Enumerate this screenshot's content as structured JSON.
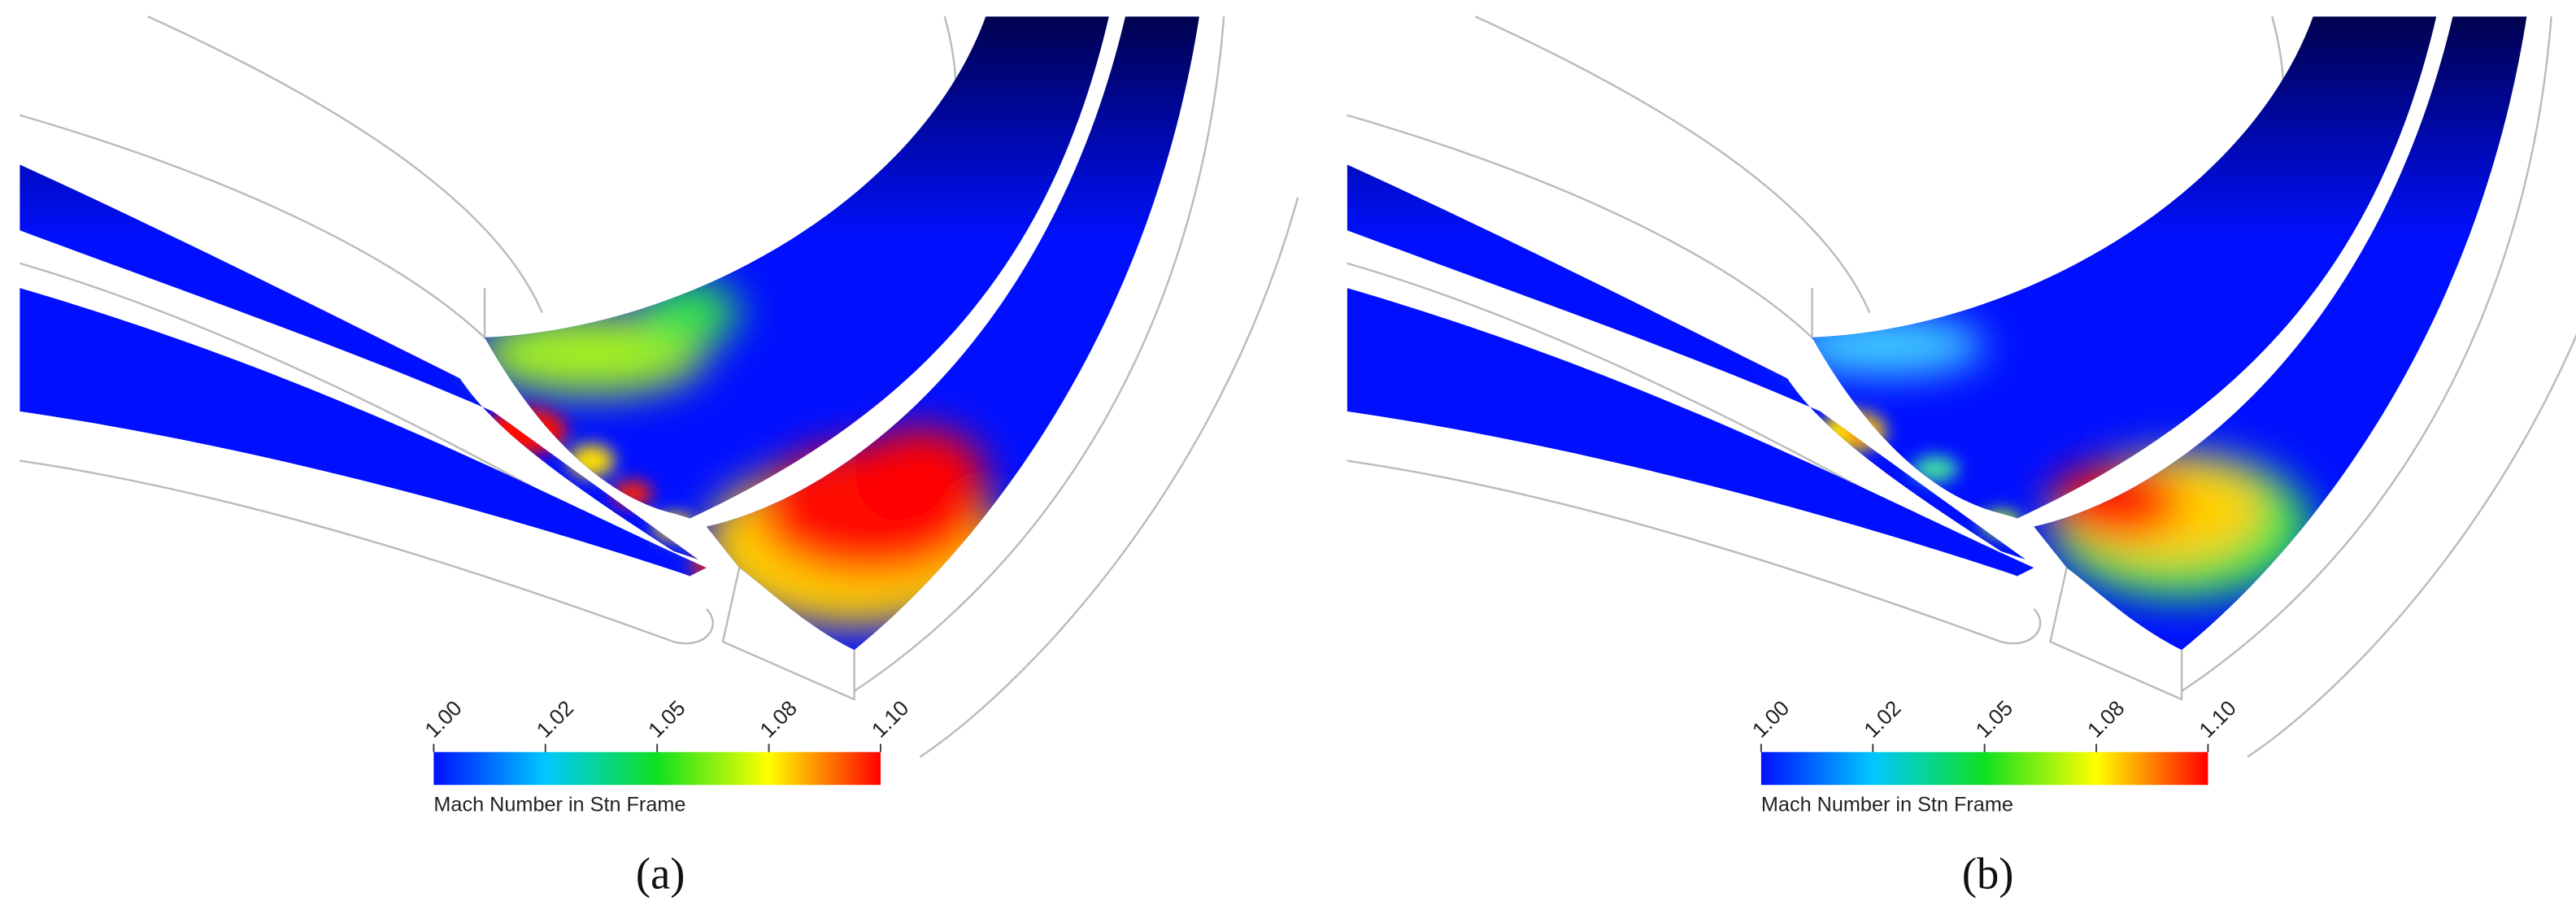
{
  "panels": [
    {
      "label": "(a)",
      "colorbar": {
        "ticks": [
          "1.00",
          "1.02",
          "1.05",
          "1.08",
          "1.10"
        ],
        "title": "Mach Number in Stn Frame"
      }
    },
    {
      "label": "(b)",
      "colorbar": {
        "ticks": [
          "1.00",
          "1.02",
          "1.05",
          "1.08",
          "1.10"
        ],
        "title": "Mach Number in Stn Frame"
      }
    }
  ]
}
